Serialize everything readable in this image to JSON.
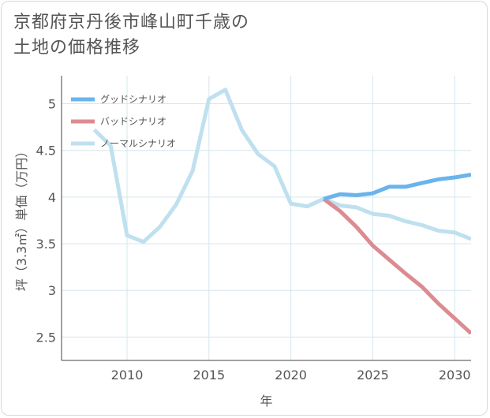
{
  "title_lines": [
    "京都府京丹後市峰山町千歳の",
    "土地の価格推移"
  ],
  "chart_data": {
    "type": "line",
    "title": "京都府京丹後市峰山町千歳の土地の価格推移",
    "xlabel": "年",
    "ylabel": "坪（3.3㎡）単価（万円）",
    "xlim": [
      2006.0,
      2031.0
    ],
    "ylim": [
      2.25,
      5.3
    ],
    "xticks": [
      2010,
      2015,
      2020,
      2025,
      2030
    ],
    "yticks": [
      2.5,
      3,
      3.5,
      4,
      4.5,
      5
    ],
    "xtick_labels": [
      "2010",
      "2015",
      "2020",
      "2025",
      "2030"
    ],
    "ytick_labels": [
      "2.5",
      "3",
      "3.5",
      "4",
      "4.5",
      "5"
    ],
    "grid": true,
    "legend_position": "top-left",
    "series": [
      {
        "name": "グッドシナリオ",
        "color": "#6ab4ec",
        "x": [
          2022,
          2023,
          2024,
          2025,
          2026,
          2027,
          2028,
          2029,
          2030,
          2031
        ],
        "y": [
          3.98,
          4.03,
          4.02,
          4.04,
          4.11,
          4.11,
          4.15,
          4.19,
          4.21,
          4.24
        ]
      },
      {
        "name": "バッドシナリオ",
        "color": "#dc8b91",
        "x": [
          2022,
          2023,
          2024,
          2025,
          2026,
          2027,
          2028,
          2029,
          2030,
          2031
        ],
        "y": [
          3.98,
          3.85,
          3.68,
          3.48,
          3.33,
          3.18,
          3.04,
          2.86,
          2.7,
          2.54
        ]
      },
      {
        "name": "ノーマルシナリオ",
        "color": "#bfe0ee",
        "x": [
          2008,
          2009,
          2010,
          2011,
          2012,
          2013,
          2014,
          2015,
          2016,
          2017,
          2018,
          2019,
          2020,
          2021,
          2022,
          2023,
          2024,
          2025,
          2026,
          2027,
          2028,
          2029,
          2030,
          2031
        ],
        "y": [
          4.72,
          4.55,
          3.59,
          3.52,
          3.68,
          3.92,
          4.28,
          5.05,
          5.15,
          4.72,
          4.46,
          4.33,
          3.93,
          3.9,
          3.98,
          3.91,
          3.89,
          3.82,
          3.8,
          3.74,
          3.7,
          3.64,
          3.62,
          3.55
        ]
      }
    ]
  }
}
